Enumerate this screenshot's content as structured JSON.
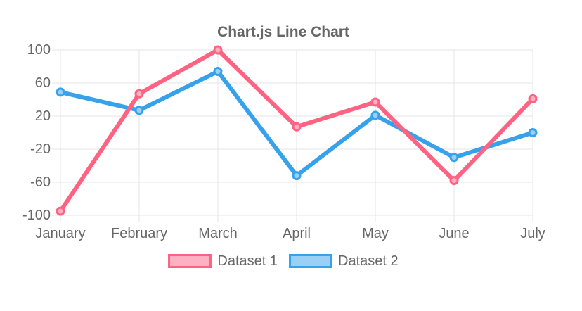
{
  "chart_data": {
    "type": "line",
    "title": "Chart.js Line Chart",
    "categories": [
      "January",
      "February",
      "March",
      "April",
      "May",
      "June",
      "July"
    ],
    "series": [
      {
        "name": "Dataset 1",
        "values": [
          -95,
          47,
          100,
          7,
          37,
          -58,
          41
        ],
        "line_color": "#ff6384",
        "fill_color": "#ffb1c1"
      },
      {
        "name": "Dataset 2",
        "values": [
          49,
          27,
          74,
          -52,
          21,
          -30,
          0
        ],
        "line_color": "#36a2eb",
        "fill_color": "#9ad0f5"
      }
    ],
    "y_ticks": [
      100,
      60,
      20,
      -20,
      -60,
      -100
    ],
    "ylim": [
      -100,
      100
    ],
    "grid": true,
    "legend_position": "bottom",
    "text_color": "#666666",
    "grid_color": "#e5e5e5",
    "background_color": "#ffffff"
  }
}
